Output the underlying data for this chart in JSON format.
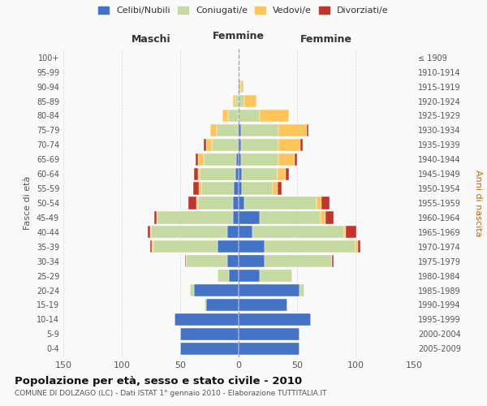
{
  "age_groups": [
    "0-4",
    "5-9",
    "10-14",
    "15-19",
    "20-24",
    "25-29",
    "30-34",
    "35-39",
    "40-44",
    "45-49",
    "50-54",
    "55-59",
    "60-64",
    "65-69",
    "70-74",
    "75-79",
    "80-84",
    "85-89",
    "90-94",
    "95-99",
    "100+"
  ],
  "birth_years": [
    "2005-2009",
    "2000-2004",
    "1995-1999",
    "1990-1994",
    "1985-1989",
    "1980-1984",
    "1975-1979",
    "1970-1974",
    "1965-1969",
    "1960-1964",
    "1955-1959",
    "1950-1954",
    "1945-1949",
    "1940-1944",
    "1935-1939",
    "1930-1934",
    "1925-1929",
    "1920-1924",
    "1915-1919",
    "1910-1914",
    "≤ 1909"
  ],
  "males_celibi": [
    50,
    50,
    55,
    28,
    38,
    8,
    10,
    18,
    10,
    5,
    5,
    4,
    3,
    2,
    1,
    1,
    0,
    0,
    0,
    0,
    0
  ],
  "males_coniugati": [
    0,
    0,
    0,
    1,
    4,
    10,
    35,
    55,
    65,
    65,
    30,
    28,
    30,
    28,
    22,
    18,
    9,
    3,
    1,
    0,
    0
  ],
  "males_vedovi": [
    0,
    0,
    0,
    0,
    0,
    0,
    0,
    1,
    1,
    0,
    1,
    2,
    2,
    5,
    5,
    5,
    5,
    2,
    0,
    0,
    0
  ],
  "males_divorziati": [
    0,
    0,
    0,
    0,
    0,
    0,
    1,
    2,
    2,
    2,
    7,
    5,
    3,
    2,
    2,
    0,
    0,
    0,
    0,
    0,
    0
  ],
  "females_nubili": [
    52,
    52,
    62,
    42,
    52,
    18,
    22,
    22,
    12,
    18,
    5,
    3,
    3,
    2,
    2,
    2,
    0,
    0,
    0,
    0,
    0
  ],
  "females_coniugate": [
    0,
    0,
    0,
    0,
    4,
    28,
    58,
    78,
    78,
    52,
    62,
    26,
    30,
    32,
    32,
    32,
    18,
    5,
    2,
    0,
    0
  ],
  "females_vedove": [
    0,
    0,
    0,
    0,
    0,
    0,
    0,
    2,
    2,
    4,
    4,
    4,
    7,
    14,
    19,
    24,
    25,
    10,
    2,
    0,
    0
  ],
  "females_divorziate": [
    0,
    0,
    0,
    0,
    0,
    0,
    1,
    2,
    9,
    7,
    7,
    4,
    3,
    2,
    2,
    2,
    0,
    0,
    0,
    0,
    0
  ],
  "color_celibi": "#4472c4",
  "color_coniugati": "#c5d9a0",
  "color_vedovi": "#ffc55a",
  "color_divorziati": "#c0362c",
  "xlim": 150,
  "title": "Popolazione per età, sesso e stato civile - 2010",
  "subtitle": "COMUNE DI DOLZAGO (LC) - Dati ISTAT 1° gennaio 2010 - Elaborazione TUTTITALIA.IT",
  "ylabel_left": "Fasce di età",
  "ylabel_right": "Anni di nascita",
  "xlabel_maschi": "Maschi",
  "xlabel_femmine": "Femmine",
  "bg_color": "#f9f9f9",
  "grid_color": "#cccccc",
  "bar_height": 0.85
}
